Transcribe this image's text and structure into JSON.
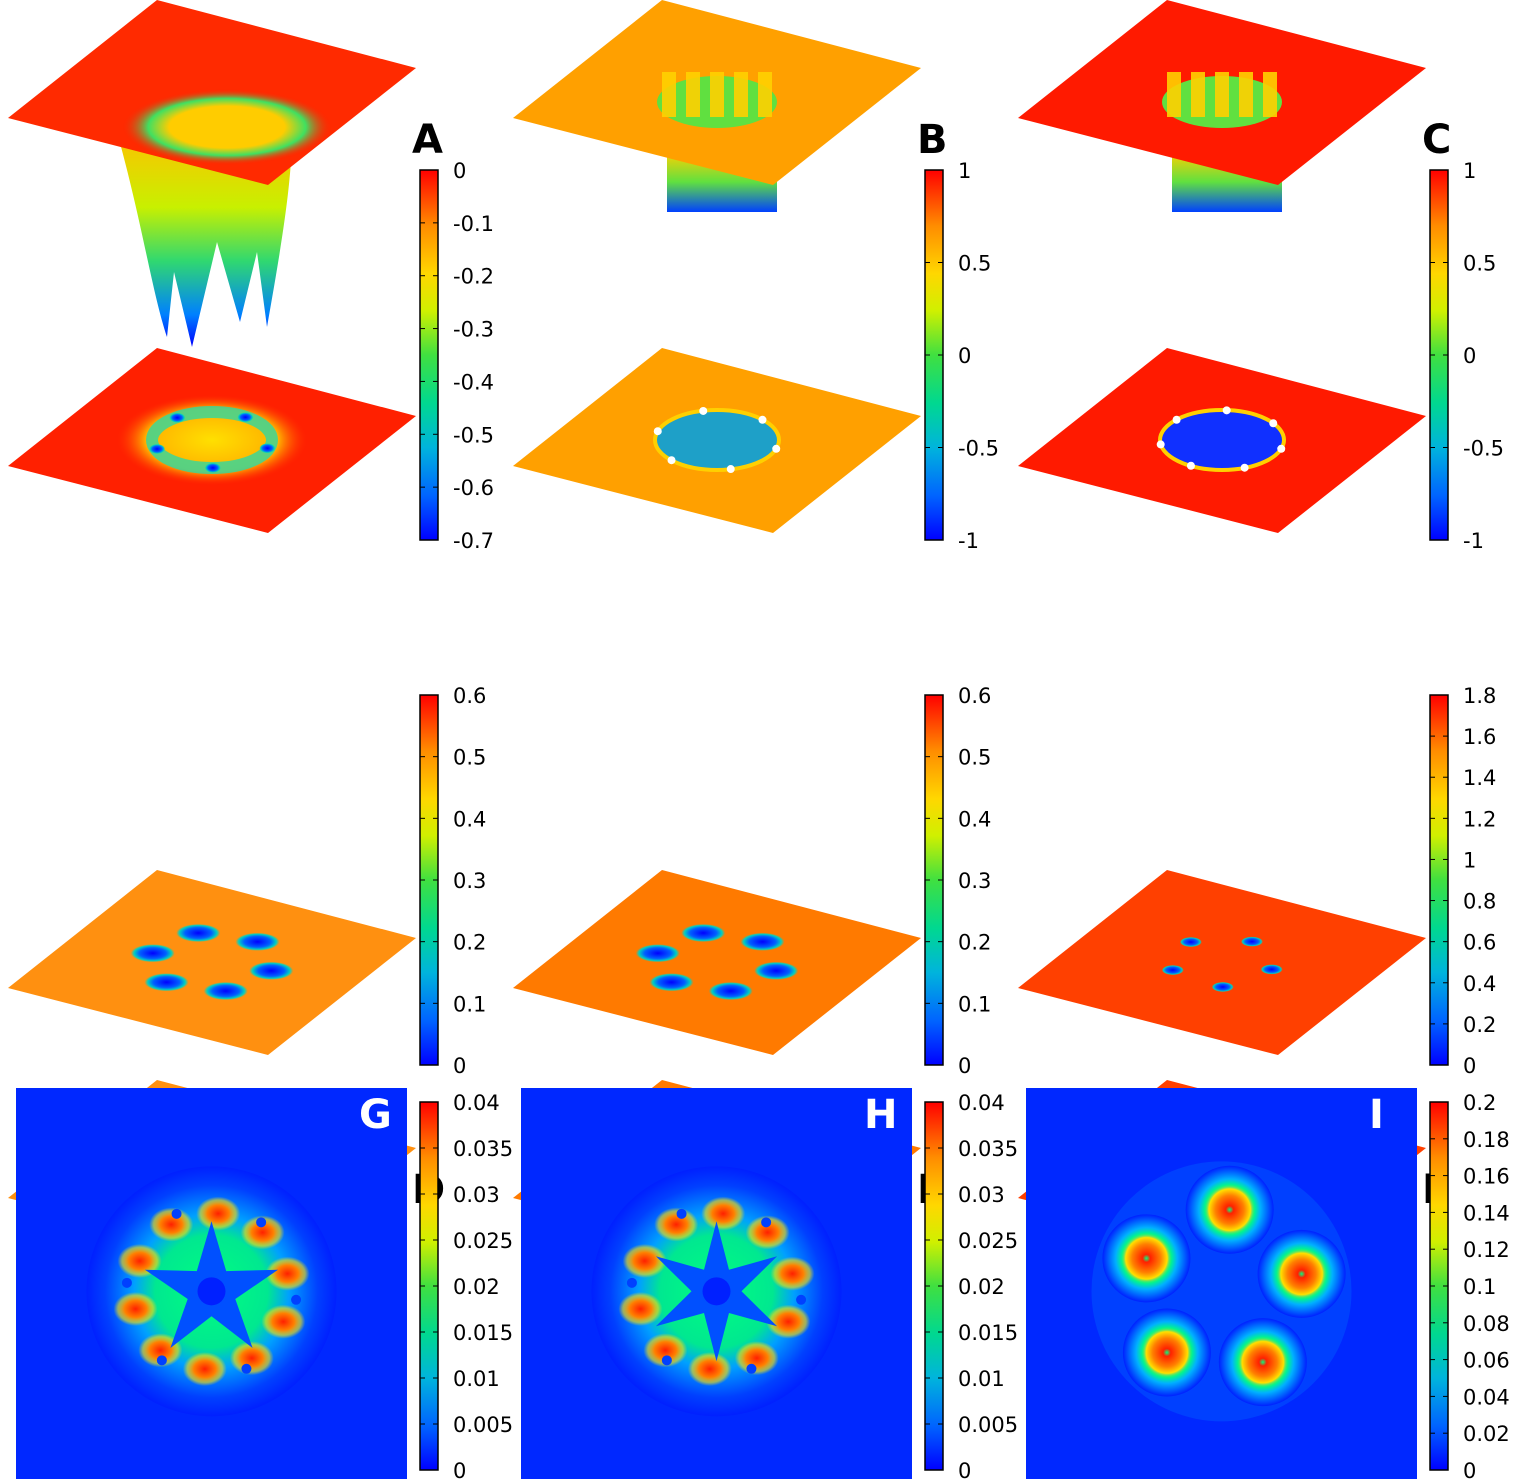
{
  "colors": {
    "colormap": [
      "#0000ff",
      "#0080ff",
      "#00c8c8",
      "#00e060",
      "#c8f000",
      "#ffd700",
      "#ff9000",
      "#ff4000",
      "#ff0000"
    ],
    "background": "#ffffff"
  },
  "chart_data": [
    {
      "panel": "A",
      "type": "surface-3d-with-projection",
      "colorbar": {
        "min": -0.7,
        "max": 0,
        "ticks": [
          "0",
          "-0.1",
          "-0.2",
          "-0.3",
          "-0.4",
          "-0.5",
          "-0.6",
          "-0.7"
        ]
      },
      "plane_top_color": "#ff2a00",
      "plane_bottom_color": "#ff2000",
      "well_center_color": "#ffd000",
      "peak_directions": "down",
      "features": 5,
      "feature_color": "#1a50ff"
    },
    {
      "panel": "B",
      "type": "surface-3d-with-projection",
      "colorbar": {
        "min": -1,
        "max": 1,
        "ticks": [
          "1",
          "0.5",
          "0",
          "-0.5",
          "-1"
        ]
      },
      "plane_top_color": "#ffa000",
      "plane_bottom_color": "#ffa000",
      "well_center_color": "#1ea0c8",
      "peak_directions": "down",
      "features": 6,
      "feature_color": "#1a50ff"
    },
    {
      "panel": "C",
      "type": "surface-3d-with-projection",
      "colorbar": {
        "min": -1,
        "max": 1,
        "ticks": [
          "1",
          "0.5",
          "0",
          "-0.5",
          "-1"
        ]
      },
      "plane_top_color": "#ff1a00",
      "plane_bottom_color": "#ff1a00",
      "well_center_color": "#1030ff",
      "peak_directions": "down",
      "features": 7,
      "feature_color": "#0a20ff"
    },
    {
      "panel": "D",
      "type": "surface-3d-with-projection",
      "colorbar": {
        "min": 0,
        "max": 0.6,
        "ticks": [
          "0.6",
          "0.5",
          "0.4",
          "0.3",
          "0.2",
          "0.1",
          "0"
        ]
      },
      "plane_top_color": "#ff9010",
      "plane_bottom_color": "#ff9010",
      "well_center_color": "#ff9010",
      "peak_directions": "both",
      "features": 6,
      "feature_color": "#0a40ff"
    },
    {
      "panel": "E",
      "type": "surface-3d-with-projection",
      "colorbar": {
        "min": 0,
        "max": 0.6,
        "ticks": [
          "0.6",
          "0.5",
          "0.4",
          "0.3",
          "0.2",
          "0.1",
          "0"
        ]
      },
      "plane_top_color": "#ff7a00",
      "plane_bottom_color": "#ff7a00",
      "well_center_color": "#ff7a00",
      "peak_directions": "both",
      "features": 6,
      "feature_color": "#0a40ff"
    },
    {
      "panel": "F",
      "type": "surface-3d-with-projection",
      "colorbar": {
        "min": 0,
        "max": 1.8,
        "ticks": [
          "1.8",
          "1.6",
          "1.4",
          "1.2",
          "1",
          "0.8",
          "0.6",
          "0.4",
          "0.2",
          "0"
        ]
      },
      "plane_top_color": "#ff4000",
      "plane_bottom_color": "#ff4000",
      "well_center_color": "#ff4000",
      "peak_directions": "down-thin",
      "features": 5,
      "feature_color": "#0a40ff"
    },
    {
      "panel": "G",
      "type": "heatmap",
      "colorbar": {
        "min": 0,
        "max": 0.04,
        "ticks": [
          "0.04",
          "0.035",
          "0.03",
          "0.025",
          "0.02",
          "0.015",
          "0.01",
          "0.005",
          "0"
        ]
      },
      "pattern": "star-ring",
      "arms": 5
    },
    {
      "panel": "H",
      "type": "heatmap",
      "colorbar": {
        "min": 0,
        "max": 0.04,
        "ticks": [
          "0.04",
          "0.035",
          "0.03",
          "0.025",
          "0.02",
          "0.015",
          "0.01",
          "0.005",
          "0"
        ]
      },
      "pattern": "star-ring",
      "arms": 6
    },
    {
      "panel": "I",
      "type": "heatmap",
      "colorbar": {
        "min": 0,
        "max": 0.2,
        "ticks": [
          "0.2",
          "0.18",
          "0.16",
          "0.14",
          "0.12",
          "0.1",
          "0.08",
          "0.06",
          "0.04",
          "0.02",
          "0"
        ]
      },
      "pattern": "five-spots",
      "arms": 5
    }
  ]
}
